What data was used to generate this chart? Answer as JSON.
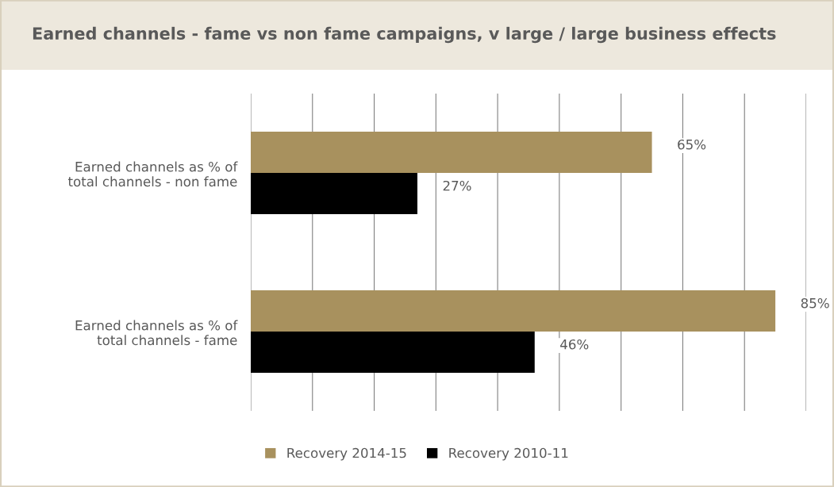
{
  "chart_data": {
    "type": "bar",
    "orientation": "horizontal",
    "title": "Earned channels - fame vs non fame campaigns, v large / large business effects",
    "categories": [
      "Earned channels as % of\ntotal channels - non fame",
      "Earned channels as % of\ntotal channels - fame"
    ],
    "series": [
      {
        "name": "Recovery 2014-15",
        "color": "#a8915e",
        "values": [
          65,
          85
        ],
        "value_labels": [
          "65%",
          "85%"
        ]
      },
      {
        "name": "Recovery 2010-11",
        "color": "#000000",
        "values": [
          27,
          46
        ],
        "value_labels": [
          "27%",
          "46%"
        ]
      }
    ],
    "xlim": [
      0,
      90
    ],
    "xticks": [
      {
        "value": 0,
        "label": null
      },
      {
        "value": 10,
        "label": null
      },
      {
        "value": 20,
        "label": null
      },
      {
        "value": 30,
        "label": null
      },
      {
        "value": 40,
        "label": null
      },
      {
        "value": 50,
        "label": null
      },
      {
        "value": 60,
        "label": null
      },
      {
        "value": 70,
        "label": null
      },
      {
        "value": 80,
        "label": null
      },
      {
        "value": 90,
        "label": null
      }
    ],
    "tick_labels": "y",
    "grid": "x",
    "legend": "bottom"
  }
}
